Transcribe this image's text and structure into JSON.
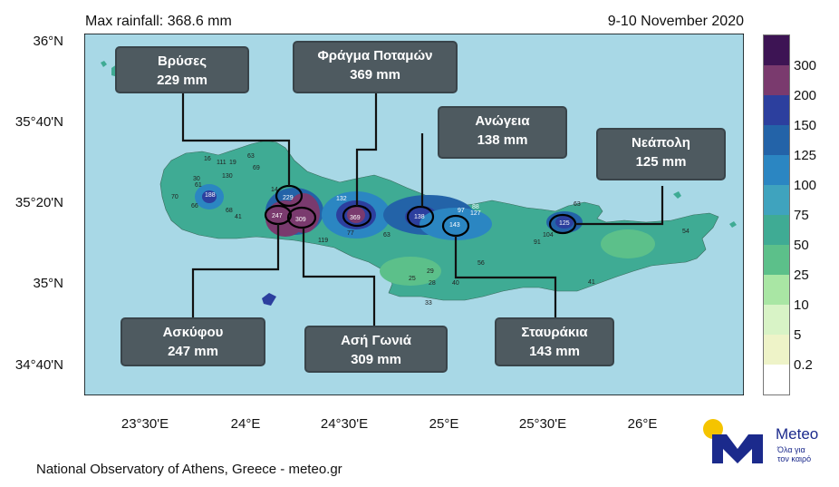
{
  "header": {
    "title_left": "Max rainfall: 368.6 mm",
    "title_right": "9-10 November 2020"
  },
  "footer": {
    "credit": "National Observatory of Athens, Greece - meteo.gr"
  },
  "axes": {
    "lat_labels": [
      "36°N",
      "35°40'N",
      "35°20'N",
      "35°N",
      "34°40'N"
    ],
    "lon_labels": [
      "23°30'E",
      "24°E",
      "24°30'E",
      "25°E",
      "25°30'E",
      "26°E"
    ]
  },
  "colorbar": {
    "labels": [
      "300",
      "200",
      "150",
      "125",
      "100",
      "75",
      "50",
      "25",
      "10",
      "5",
      "0.2"
    ],
    "colors": [
      "#3d1454",
      "#7a3a6e",
      "#2c3f9e",
      "#2363a8",
      "#2b86c2",
      "#3fa3be",
      "#3fab94",
      "#5cc08a",
      "#a9e6a4",
      "#d8f3c6",
      "#eef3c8",
      "#ffffff"
    ]
  },
  "callouts": [
    {
      "id": "vryses",
      "name": "Βρύσες",
      "value": "229 mm"
    },
    {
      "id": "fragma",
      "name": "Φράγμα Ποταμών",
      "value": "369 mm"
    },
    {
      "id": "anogeia",
      "name": "Ανώγεια",
      "value": "138 mm"
    },
    {
      "id": "neapoli",
      "name": "Νεάπολη",
      "value": "125 mm"
    },
    {
      "id": "askyfou",
      "name": "Ασκύφου",
      "value": "247 mm"
    },
    {
      "id": "asi-gonia",
      "name": "Ασή Γωνιά",
      "value": "309 mm"
    },
    {
      "id": "stavrakia",
      "name": "Σταυράκια",
      "value": "143 mm"
    }
  ],
  "station_values": [
    "16",
    "111",
    "19",
    "63",
    "69",
    "30",
    "61",
    "130",
    "70",
    "188",
    "66",
    "68",
    "41",
    "14",
    "229",
    "247",
    "309",
    "119",
    "132",
    "369",
    "77",
    "63",
    "138",
    "97",
    "88",
    "127",
    "143",
    "56",
    "29",
    "25",
    "28",
    "40",
    "33",
    "104",
    "91",
    "125",
    "63",
    "41",
    "54"
  ],
  "logo": {
    "name": "Meteo",
    "tagline_1": "Όλα για",
    "tagline_2": "τον καιρό"
  },
  "colors": {
    "sea": "#a8d8e6",
    "land_base": "#3fab94",
    "callout_bg": "#4e5a60"
  }
}
